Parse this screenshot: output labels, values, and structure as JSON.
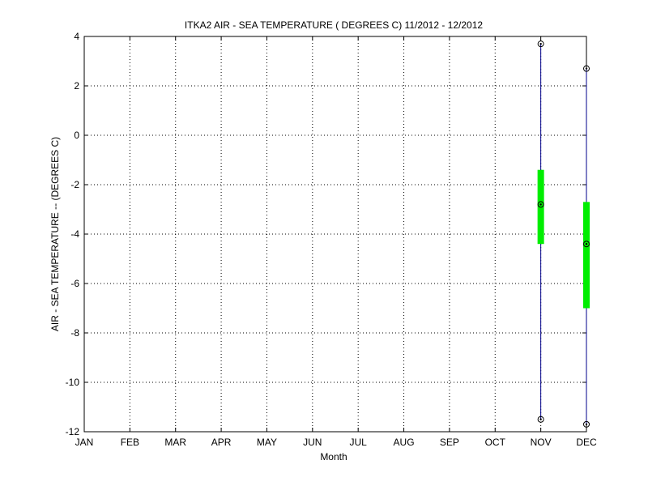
{
  "chart_data": {
    "type": "box",
    "title": "ITKA2  AIR - SEA TEMPERATURE ( DEGREES C) 11/2012 - 12/2012",
    "xlabel": "Month",
    "ylabel": "AIR - SEA TEMPERATURE -- (DEGREES C)",
    "categories": [
      "JAN",
      "FEB",
      "MAR",
      "APR",
      "MAY",
      "JUN",
      "JUL",
      "AUG",
      "SEP",
      "OCT",
      "NOV",
      "DEC"
    ],
    "ylim": [
      -12,
      4
    ],
    "yticks": [
      4,
      2,
      0,
      -2,
      -4,
      -6,
      -8,
      -10,
      -12
    ],
    "grid": true,
    "boxes": [
      {
        "category": "NOV",
        "min": -11.5,
        "q1": -4.4,
        "median": -2.8,
        "q3": -1.4,
        "max": 3.7
      },
      {
        "category": "DEC",
        "min": -11.7,
        "q1": -7.0,
        "median": -4.4,
        "q3": -2.7,
        "max": 2.7
      }
    ],
    "colors": {
      "whisker": "#00008b",
      "box": "#00ee00",
      "marker": "#000000",
      "grid": "#000000"
    }
  }
}
